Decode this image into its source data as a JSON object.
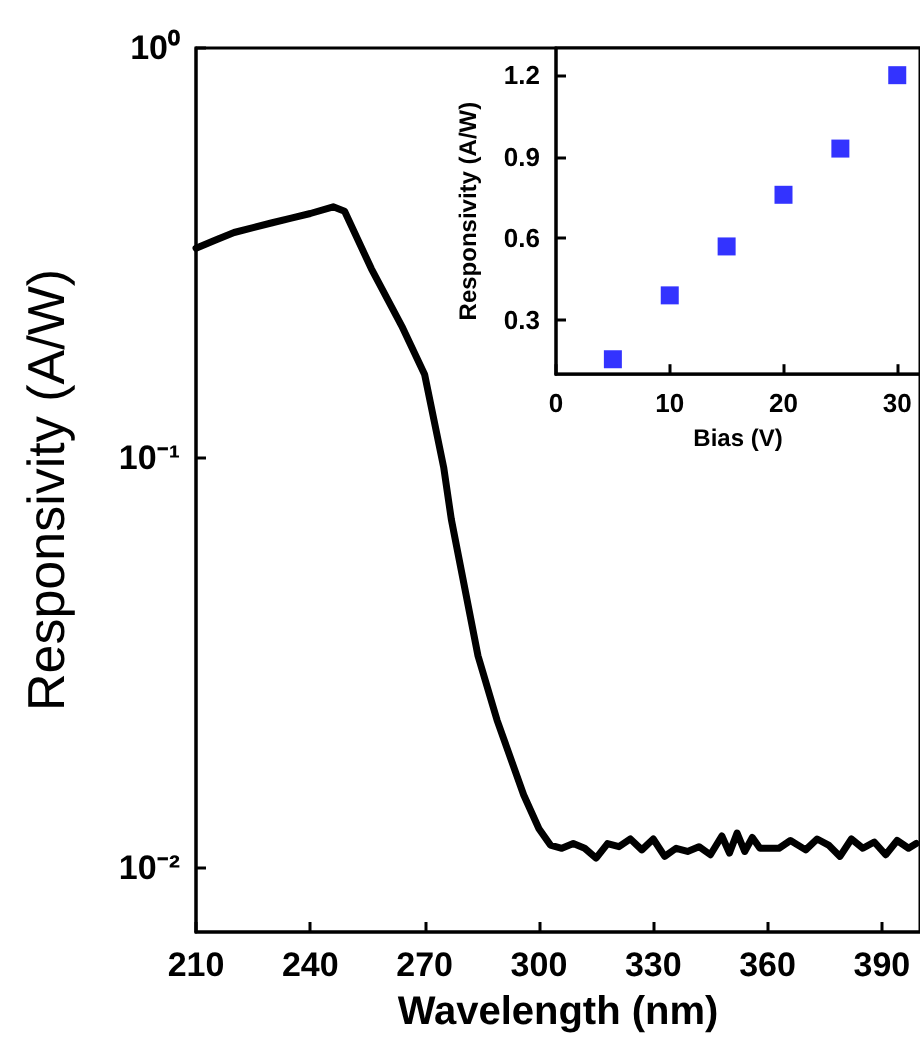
{
  "chart_data": [
    {
      "type": "line",
      "xlabel": "Wavelength (nm)",
      "ylabel": "Responsivity (A/W)",
      "log": "y",
      "marker": "none",
      "line_style": "solid",
      "xlim": [
        210,
        400
      ],
      "xticks": [
        210,
        240,
        270,
        300,
        330,
        360,
        390
      ],
      "ylim": [
        0.007,
        1
      ],
      "yticks": [
        {
          "value": 1,
          "label": "10⁰"
        },
        {
          "value": 0.1,
          "label": "10⁻¹"
        },
        {
          "value": 0.01,
          "label": "10⁻²"
        }
      ],
      "x": [
        210,
        215,
        220,
        225,
        230,
        235,
        240,
        246,
        249,
        256,
        264,
        270,
        275,
        277,
        284,
        289,
        296,
        300,
        303,
        306,
        309,
        312,
        315,
        318,
        321,
        324,
        327,
        330,
        333,
        336,
        339,
        342,
        345,
        348,
        350,
        352,
        354,
        356,
        358,
        360,
        363,
        366,
        370,
        373,
        376,
        379,
        382,
        385,
        388,
        391,
        394,
        397,
        399
      ],
      "series": [
        {
          "color": "#000000",
          "values": [
            0.325,
            0.34,
            0.355,
            0.365,
            0.375,
            0.385,
            0.395,
            0.41,
            0.4,
            0.29,
            0.21,
            0.16,
            0.095,
            0.071,
            0.033,
            0.023,
            0.0151,
            0.0125,
            0.0114,
            0.0112,
            0.0115,
            0.0112,
            0.0106,
            0.0115,
            0.0113,
            0.0118,
            0.0111,
            0.0118,
            0.0107,
            0.0112,
            0.011,
            0.0113,
            0.0108,
            0.012,
            0.0109,
            0.0122,
            0.011,
            0.0119,
            0.0112,
            0.0112,
            0.0112,
            0.0117,
            0.0111,
            0.0118,
            0.0114,
            0.0107,
            0.0118,
            0.0112,
            0.0116,
            0.0108,
            0.0117,
            0.0112,
            0.0115
          ]
        }
      ]
    },
    {
      "type": "scatter",
      "xlabel": "Bias (V)",
      "ylabel": "Responsivity (A/W)",
      "marker": "square",
      "xlim": [
        0,
        32
      ],
      "xticks": [
        0,
        10,
        20,
        30
      ],
      "ylim": [
        0.1,
        1.3
      ],
      "yticks": [
        0.3,
        0.6,
        0.9,
        1.2
      ],
      "x": [
        5,
        10,
        15,
        20,
        25,
        30
      ],
      "series": [
        {
          "color": "#0000ff",
          "values": [
            0.155,
            0.39,
            0.57,
            0.76,
            0.93,
            1.2
          ]
        }
      ]
    }
  ]
}
